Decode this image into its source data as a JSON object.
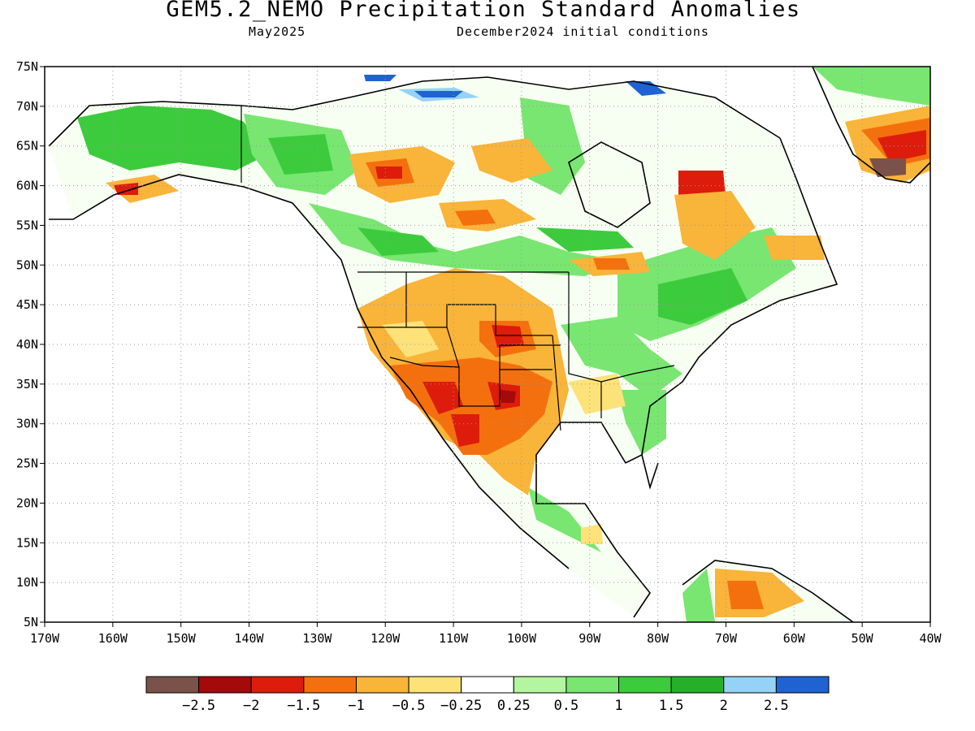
{
  "header": {
    "title": "GEM5.2_NEMO Precipitation Standard Anomalies",
    "subtitle_left": "May2025",
    "subtitle_right": "December2024 initial conditions"
  },
  "map": {
    "lat_labels": [
      "5N",
      "10N",
      "15N",
      "20N",
      "25N",
      "30N",
      "35N",
      "40N",
      "45N",
      "50N",
      "55N",
      "60N",
      "65N",
      "70N",
      "75N"
    ],
    "lon_labels": [
      "170W",
      "160W",
      "150W",
      "140W",
      "130W",
      "120W",
      "110W",
      "100W",
      "90W",
      "80W",
      "70W",
      "60W",
      "50W",
      "40W"
    ]
  },
  "colorbar": {
    "labels": [
      "−2.5",
      "−2",
      "−1.5",
      "−1",
      "−0.5",
      "−0.25",
      "0.25",
      "0.5",
      "1",
      "1.5",
      "2",
      "2.5"
    ],
    "colors": [
      "#7a5249",
      "#a50a0a",
      "#dd1c0c",
      "#f4700e",
      "#f9b43a",
      "#fde27a",
      "#ffffff",
      "#b4f5a0",
      "#78e671",
      "#3ccb3c",
      "#26b02a",
      "#96d2f8",
      "#1f62d2"
    ]
  }
}
